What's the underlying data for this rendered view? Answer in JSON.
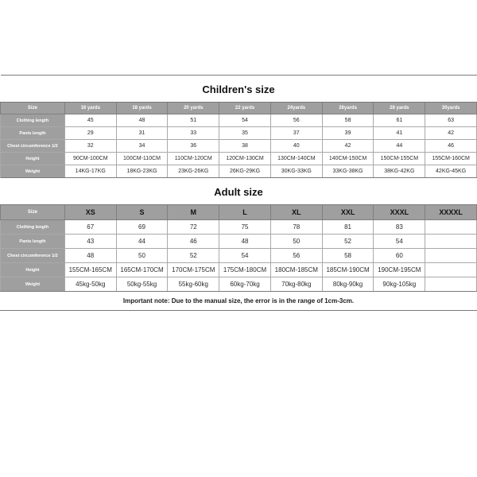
{
  "colors": {
    "header_bg": "#9f9f9f",
    "header_text": "#ffffff",
    "cell_text": "#2b2b2b",
    "border": "#a9a9a9",
    "title_border": "#7a7a7a",
    "row_label_bg": "#9f9f9f",
    "background": "#ffffff"
  },
  "fonts": {
    "title_pt": 13,
    "header_pt": 6,
    "cell_pt": 7,
    "footnote_pt": 8,
    "family": "Arial"
  },
  "children": {
    "title": "Children's size",
    "title_style": "font-size:13px;color:#111111;",
    "columns": [
      "Size",
      "16 yards",
      "18 yards",
      "20 yards",
      "22 yards",
      "24yards",
      "26yards",
      "28 yards",
      "30yards"
    ],
    "header_style": "font-size:6px;",
    "row_label_style": "font-size:5.5px;",
    "cell_style": "font-size:7px;",
    "rows": [
      {
        "label": "Clothing length",
        "cells": [
          "45",
          "48",
          "51",
          "54",
          "56",
          "58",
          "61",
          "63"
        ]
      },
      {
        "label": "Pants length",
        "cells": [
          "29",
          "31",
          "33",
          "35",
          "37",
          "39",
          "41",
          "42"
        ]
      },
      {
        "label": "Chest circumference 1/2",
        "cells": [
          "32",
          "34",
          "36",
          "38",
          "40",
          "42",
          "44",
          "46"
        ]
      },
      {
        "label": "Height",
        "cells": [
          "90CM-100CM",
          "100CM-110CM",
          "110CM-120CM",
          "120CM-130CM",
          "130CM-140CM",
          "140CM-150CM",
          "150CM-155CM",
          "155CM-160CM"
        ]
      },
      {
        "label": "Weight",
        "cells": [
          "14KG-17KG",
          "18KG-23KG",
          "23KG-26KG",
          "26KG-29KG",
          "30KG-33KG",
          "33KG-38KG",
          "38KG-42KG",
          "42KG-45KG"
        ]
      }
    ]
  },
  "adult": {
    "title": "Adult size",
    "title_style": "font-size:13px;color:#111111;",
    "columns": [
      "Size",
      "XS",
      "S",
      "M",
      "L",
      "XL",
      "XXL",
      "XXXL",
      "XXXXL"
    ],
    "header_style_first": "font-size:6px;",
    "header_style_rest": "font-size:9px;color:#111111;",
    "row_label_style": "font-size:5.5px;",
    "cell_style": "font-size:8px;",
    "rows": [
      {
        "label": "Clothing length",
        "cells": [
          "67",
          "69",
          "72",
          "75",
          "78",
          "81",
          "83",
          ""
        ]
      },
      {
        "label": "Pants length",
        "cells": [
          "43",
          "44",
          "46",
          "48",
          "50",
          "52",
          "54",
          ""
        ]
      },
      {
        "label": "Chest circumference 1/2",
        "cells": [
          "48",
          "50",
          "52",
          "54",
          "56",
          "58",
          "60",
          ""
        ]
      },
      {
        "label": "Height",
        "cells": [
          "155CM-165CM",
          "165CM-170CM",
          "170CM-175CM",
          "175CM-180CM",
          "180CM-185CM",
          "185CM-190CM",
          "190CM-195CM",
          ""
        ]
      },
      {
        "label": "Weight",
        "cells": [
          "45kg-50kg",
          "50kg-55kg",
          "55kg-60kg",
          "60kg-70kg",
          "70kg-80kg",
          "80kg-90kg",
          "90kg-105kg",
          ""
        ]
      }
    ]
  },
  "footnote": {
    "text": "Important note: Due to the manual size, the error is in the range of 1cm-3cm.",
    "style": "font-size:8px;"
  }
}
